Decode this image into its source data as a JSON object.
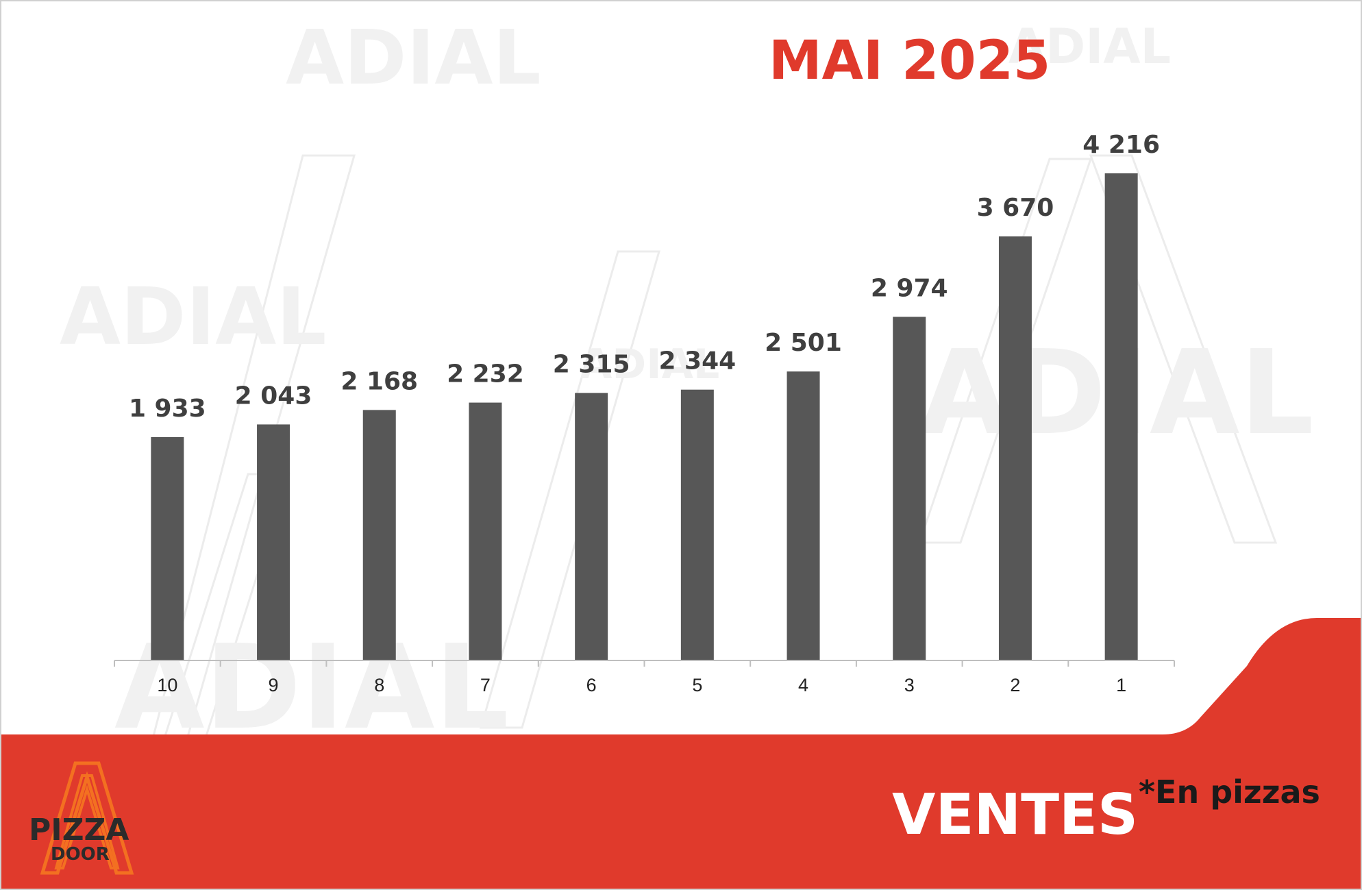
{
  "title": "MAI 2025",
  "footer": {
    "title": "VENTES",
    "note": "*En pizzas"
  },
  "logo": {
    "line1": "PIZZA",
    "line2": "DOOR"
  },
  "watermark": "ADIAL",
  "colors": {
    "accent": "#e03a2c",
    "bar": "#575757",
    "label": "#3f3f3f",
    "footer_text": "#ffffff",
    "note_text": "#1a1a1a",
    "logo_orange": "#f37021"
  },
  "chart_data": {
    "type": "bar",
    "title": "MAI 2025",
    "categories": [
      "10",
      "9",
      "8",
      "7",
      "6",
      "5",
      "4",
      "3",
      "2",
      "1"
    ],
    "values": [
      1933,
      2043,
      2168,
      2232,
      2315,
      2344,
      2501,
      2974,
      3670,
      4216
    ],
    "value_labels": [
      "1 933",
      "2 043",
      "2 168",
      "2 232",
      "2 315",
      "2 344",
      "2 501",
      "2 974",
      "3 670",
      "4 216"
    ],
    "xlabel": "",
    "ylabel": "",
    "ylim": [
      0,
      4216
    ],
    "grid": false,
    "legend": "none"
  }
}
